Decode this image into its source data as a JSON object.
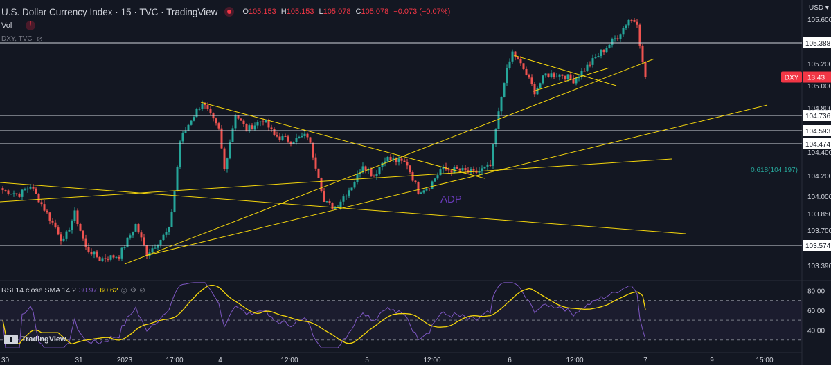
{
  "header": {
    "title": "U.S. Dollar Currency Index · 15 · TVC · TradingView",
    "o_label": "O",
    "o_value": "105.153",
    "h_label": "H",
    "h_value": "105.153",
    "l_label": "L",
    "l_value": "105.078",
    "c_label": "C",
    "c_value": "105.078",
    "change": "−0.073 (−0.07%)"
  },
  "vol_label": "Vol",
  "ticker_note": "DXY, TVC",
  "currency": "USD",
  "logo_text": "TradingView",
  "annotation": "ADP",
  "fib_label": "0.618(104.197)",
  "rsi_header": {
    "name": "RSI 14 close SMA 14 2",
    "rsi_value": "30.97",
    "sma_value": "60.62"
  },
  "colors": {
    "background": "#131722",
    "up": "#26a69a",
    "down": "#ef5350",
    "trendline": "#f5d60c",
    "rsi": "#7e57c2",
    "rsi_sma": "#f5d60c",
    "fib": "#26a69a",
    "last_price": "#f23645",
    "annotation": "#673ab7"
  },
  "chart_data": [
    {
      "type": "candlestick",
      "title": "U.S. Dollar Currency Index · 15 · TVC",
      "ylim": [
        103.3,
        105.7
      ],
      "y_ticks": [
        "105.600",
        "105.200",
        "105.000",
        "104.800",
        "104.400",
        "104.200",
        "104.000",
        "103.850",
        "103.700",
        "103.390"
      ],
      "x_ticks": [
        "30",
        "31",
        "2023",
        "17:00",
        "4",
        "12:00",
        "5",
        "12:00",
        "6",
        "12:00",
        "7",
        "9",
        "15:00"
      ],
      "last_price": {
        "label": "DXY",
        "countdown": "13:43",
        "value": 105.078
      },
      "horizontal_levels": [
        {
          "value": 105.388,
          "label": "105.388"
        },
        {
          "value": 104.736,
          "label": "104.736"
        },
        {
          "value": 104.593,
          "label": "104.593"
        },
        {
          "value": 104.474,
          "label": "104.474"
        },
        {
          "value": 103.574,
          "label": "103.574"
        }
      ],
      "fib_level": {
        "value": 104.197,
        "label": "0.618(104.197)"
      },
      "anchors": [
        [
          0,
          104.06
        ],
        [
          6,
          104.02
        ],
        [
          10,
          104.1
        ],
        [
          16,
          103.85
        ],
        [
          22,
          103.6
        ],
        [
          26,
          103.85
        ],
        [
          30,
          103.55
        ],
        [
          35,
          103.45
        ],
        [
          42,
          103.48
        ],
        [
          48,
          103.75
        ],
        [
          52,
          103.5
        ],
        [
          56,
          103.6
        ],
        [
          60,
          103.7
        ],
        [
          62,
          104.05
        ],
        [
          64,
          104.5
        ],
        [
          68,
          104.7
        ],
        [
          72,
          104.85
        ],
        [
          78,
          104.6
        ],
        [
          80,
          104.25
        ],
        [
          84,
          104.75
        ],
        [
          88,
          104.6
        ],
        [
          94,
          104.7
        ],
        [
          98,
          104.55
        ],
        [
          104,
          104.5
        ],
        [
          110,
          104.55
        ],
        [
          114,
          104.2
        ],
        [
          116,
          103.95
        ],
        [
          120,
          103.9
        ],
        [
          126,
          104.1
        ],
        [
          130,
          104.3
        ],
        [
          134,
          104.2
        ],
        [
          138,
          104.35
        ],
        [
          146,
          104.3
        ],
        [
          150,
          104.05
        ],
        [
          154,
          104.1
        ],
        [
          158,
          104.25
        ],
        [
          164,
          104.25
        ],
        [
          170,
          104.22
        ],
        [
          176,
          104.28
        ],
        [
          178,
          104.6
        ],
        [
          181,
          105.05
        ],
        [
          184,
          105.3
        ],
        [
          188,
          105.15
        ],
        [
          192,
          104.95
        ],
        [
          196,
          105.1
        ],
        [
          202,
          105.1
        ],
        [
          206,
          105.05
        ],
        [
          212,
          105.2
        ],
        [
          218,
          105.35
        ],
        [
          222,
          105.45
        ],
        [
          226,
          105.6
        ],
        [
          229,
          105.58
        ],
        [
          231,
          105.2
        ],
        [
          232,
          105.08
        ]
      ],
      "candle_count": 233
    },
    {
      "type": "line",
      "title": "RSI 14 close SMA 14 2",
      "ylim": [
        20,
        90
      ],
      "y_ticks": [
        "80.00",
        "60.00",
        "40.00"
      ],
      "levels": [
        70,
        50,
        30
      ],
      "series": [
        {
          "name": "RSI",
          "values": []
        },
        {
          "name": "SMA",
          "values": []
        }
      ]
    }
  ]
}
